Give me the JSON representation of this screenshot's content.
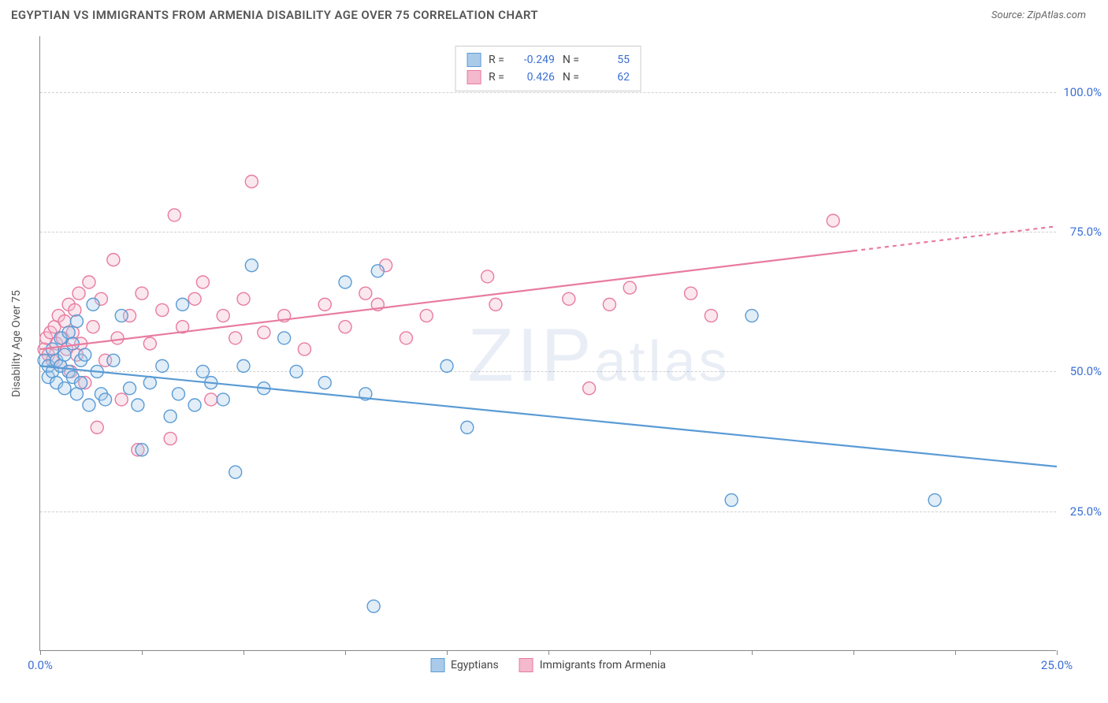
{
  "header": {
    "title": "EGYPTIAN VS IMMIGRANTS FROM ARMENIA DISABILITY AGE OVER 75 CORRELATION CHART",
    "source_label": "Source:",
    "source_name": "ZipAtlas.com"
  },
  "chart": {
    "type": "scatter",
    "y_axis_label": "Disability Age Over 75",
    "xlim": [
      0,
      25
    ],
    "ylim": [
      0,
      110
    ],
    "y_ticks": [
      25,
      50,
      75,
      100
    ],
    "y_tick_labels": [
      "25.0%",
      "50.0%",
      "75.0%",
      "100.0%"
    ],
    "x_ticks": [
      0,
      2.5,
      5,
      7.5,
      10,
      12.5,
      15,
      17.5,
      20,
      22.5,
      25
    ],
    "x_tick_labels_shown": {
      "0": "0.0%",
      "25": "25.0%"
    },
    "grid_color": "#d0d0d0",
    "axis_color": "#888888",
    "background_color": "#ffffff",
    "marker_radius": 8,
    "marker_stroke_width": 1.4,
    "marker_fill_opacity": 0.35,
    "trend_line_width": 2.2,
    "series": [
      {
        "key": "egyptians",
        "label": "Egyptians",
        "color_stroke": "#5a9bd5",
        "color_fill": "#a9cbe9",
        "R": "-0.249",
        "N": "55",
        "trend": {
          "x1": 0,
          "y1": 51,
          "x2": 25,
          "y2": 33,
          "dashed_from_x": null
        },
        "points": [
          [
            0.1,
            52
          ],
          [
            0.2,
            49
          ],
          [
            0.2,
            51
          ],
          [
            0.3,
            50
          ],
          [
            0.3,
            54
          ],
          [
            0.4,
            48
          ],
          [
            0.4,
            52
          ],
          [
            0.5,
            51
          ],
          [
            0.5,
            56
          ],
          [
            0.6,
            47
          ],
          [
            0.6,
            53
          ],
          [
            0.7,
            50
          ],
          [
            0.7,
            57
          ],
          [
            0.8,
            49
          ],
          [
            0.8,
            55
          ],
          [
            0.9,
            46
          ],
          [
            0.9,
            59
          ],
          [
            1.0,
            48
          ],
          [
            1.0,
            52
          ],
          [
            1.1,
            53
          ],
          [
            1.2,
            44
          ],
          [
            1.3,
            62
          ],
          [
            1.4,
            50
          ],
          [
            1.5,
            46
          ],
          [
            1.6,
            45
          ],
          [
            1.8,
            52
          ],
          [
            2.0,
            60
          ],
          [
            2.2,
            47
          ],
          [
            2.4,
            44
          ],
          [
            2.5,
            36
          ],
          [
            2.7,
            48
          ],
          [
            3.0,
            51
          ],
          [
            3.2,
            42
          ],
          [
            3.4,
            46
          ],
          [
            3.5,
            62
          ],
          [
            3.8,
            44
          ],
          [
            4.0,
            50
          ],
          [
            4.2,
            48
          ],
          [
            4.5,
            45
          ],
          [
            4.8,
            32
          ],
          [
            5.0,
            51
          ],
          [
            5.2,
            69
          ],
          [
            5.5,
            47
          ],
          [
            6.0,
            56
          ],
          [
            6.3,
            50
          ],
          [
            7.0,
            48
          ],
          [
            7.5,
            66
          ],
          [
            8.0,
            46
          ],
          [
            8.2,
            8
          ],
          [
            8.3,
            68
          ],
          [
            10.0,
            51
          ],
          [
            10.5,
            40
          ],
          [
            17.0,
            27
          ],
          [
            17.5,
            60
          ],
          [
            22.0,
            27
          ]
        ]
      },
      {
        "key": "armenia",
        "label": "Immigrants from Armenia",
        "color_stroke": "#e87ba0",
        "color_fill": "#f4b9cd",
        "R": "0.426",
        "N": "62",
        "trend": {
          "x1": 0,
          "y1": 54,
          "x2": 25,
          "y2": 76,
          "dashed_from_x": 20
        },
        "points": [
          [
            0.1,
            54
          ],
          [
            0.15,
            56
          ],
          [
            0.2,
            53
          ],
          [
            0.25,
            57
          ],
          [
            0.3,
            52
          ],
          [
            0.35,
            58
          ],
          [
            0.4,
            55
          ],
          [
            0.45,
            60
          ],
          [
            0.5,
            51
          ],
          [
            0.55,
            56
          ],
          [
            0.6,
            59
          ],
          [
            0.65,
            54
          ],
          [
            0.7,
            62
          ],
          [
            0.75,
            50
          ],
          [
            0.8,
            57
          ],
          [
            0.85,
            61
          ],
          [
            0.9,
            53
          ],
          [
            0.95,
            64
          ],
          [
            1.0,
            55
          ],
          [
            1.1,
            48
          ],
          [
            1.2,
            66
          ],
          [
            1.3,
            58
          ],
          [
            1.4,
            40
          ],
          [
            1.5,
            63
          ],
          [
            1.6,
            52
          ],
          [
            1.8,
            70
          ],
          [
            1.9,
            56
          ],
          [
            2.0,
            45
          ],
          [
            2.2,
            60
          ],
          [
            2.4,
            36
          ],
          [
            2.5,
            64
          ],
          [
            2.7,
            55
          ],
          [
            3.0,
            61
          ],
          [
            3.2,
            38
          ],
          [
            3.3,
            78
          ],
          [
            3.5,
            58
          ],
          [
            3.8,
            63
          ],
          [
            4.0,
            66
          ],
          [
            4.2,
            45
          ],
          [
            4.5,
            60
          ],
          [
            4.8,
            56
          ],
          [
            5.0,
            63
          ],
          [
            5.2,
            84
          ],
          [
            5.5,
            57
          ],
          [
            6.0,
            60
          ],
          [
            6.5,
            54
          ],
          [
            7.0,
            62
          ],
          [
            7.5,
            58
          ],
          [
            8.0,
            64
          ],
          [
            8.3,
            62
          ],
          [
            8.5,
            69
          ],
          [
            9.0,
            56
          ],
          [
            9.5,
            60
          ],
          [
            11.0,
            67
          ],
          [
            11.2,
            62
          ],
          [
            13.0,
            63
          ],
          [
            13.5,
            47
          ],
          [
            14.0,
            62
          ],
          [
            14.5,
            65
          ],
          [
            16.0,
            64
          ],
          [
            16.5,
            60
          ],
          [
            19.5,
            77
          ]
        ]
      }
    ],
    "watermark": "ZIPatlas"
  },
  "legend_stats": {
    "r_label": "R =",
    "n_label": "N ="
  }
}
